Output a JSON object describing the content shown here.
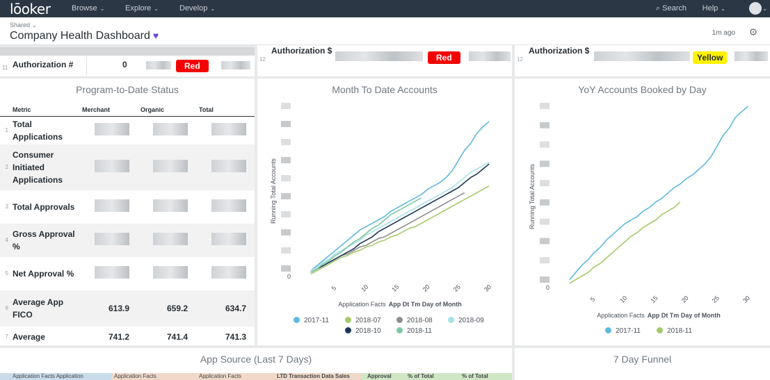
{
  "nav": {
    "logo": "lōoker",
    "browse": "Browse",
    "explore": "Explore",
    "develop": "Develop",
    "search": "Search",
    "help": "Help"
  },
  "header": {
    "shared": "Shared",
    "title": "Company Health Dashboard",
    "updated": "1m ago"
  },
  "auth_tiles": [
    {
      "rownum": "11",
      "label": "Authorization #",
      "value": "0",
      "badge": "Red"
    },
    {
      "rownum": "12",
      "label": "Authorization $",
      "badge": "Red"
    },
    {
      "rownum": "12",
      "label": "Authorization $",
      "badge": "Yellow"
    }
  ],
  "program_to_date": {
    "title": "Program-to-Date Status",
    "columns": [
      "Metric",
      "Merchant",
      "Organic",
      "Total"
    ],
    "rows": [
      {
        "num": "1",
        "metric": "Total Applications"
      },
      {
        "num": "2",
        "metric": "Consumer Initiated Applications"
      },
      {
        "num": "3",
        "metric": "Total Approvals"
      },
      {
        "num": "4",
        "metric": "Gross Approval %"
      },
      {
        "num": "5",
        "metric": "Net Approval %"
      },
      {
        "num": "6",
        "metric": "Average App FICO",
        "merchant": "613.9",
        "organic": "659.2",
        "total": "634.7"
      },
      {
        "num": "7",
        "metric": "Average",
        "merchant": "741.2",
        "organic": "741.4",
        "total": "741.3"
      }
    ]
  },
  "mtd_chart_title": "Month To Date Accounts",
  "yoy_chart_title": "YoY Accounts Booked by Day",
  "app_source_title": "App Source (Last 7 Days)",
  "funnel_title": "7 Day Funnel",
  "bottom_headers": [
    "Application Facts Application",
    "Application Facts",
    "Application Facts",
    "LTD Transaction Data Sales",
    "Approval",
    "% of Total",
    "% of Total"
  ],
  "chart_data": [
    {
      "type": "line",
      "title": "Month To Date Accounts",
      "xlabel_prefix": "Application Facts",
      "xlabel_bold": "App Dt Tm Day of Month",
      "ylabel": "Running Total Accounts",
      "x_ticks": [
        5,
        10,
        15,
        20,
        25,
        30
      ],
      "y_tick_zero": "0",
      "xlim": [
        0,
        31
      ],
      "ylim": [
        0,
        100
      ],
      "series": [
        {
          "name": "2017-11",
          "color": "#5fb9dc",
          "x": [
            1,
            2,
            3,
            4,
            5,
            6,
            7,
            8,
            9,
            10,
            11,
            12,
            13,
            14,
            15,
            16,
            17,
            18,
            19,
            20,
            21,
            22,
            23,
            24,
            25,
            26,
            27,
            28,
            29,
            30
          ],
          "values": [
            3,
            6,
            9,
            12,
            15,
            18,
            21,
            24,
            27,
            29,
            31,
            33,
            35,
            38,
            40,
            42,
            44,
            46,
            48,
            51,
            53,
            55,
            58,
            62,
            68,
            74,
            78,
            84,
            88,
            91
          ]
        },
        {
          "name": "2018-07",
          "color": "#a5c96a",
          "x": [
            1,
            2,
            3,
            4,
            5,
            6,
            7,
            8,
            9,
            10,
            11,
            12,
            13,
            14,
            15,
            16,
            17,
            18,
            19,
            20,
            21,
            22,
            23,
            24,
            25,
            26,
            27,
            28,
            29,
            30
          ],
          "values": [
            1,
            3,
            5,
            7,
            9,
            11,
            12,
            14,
            15,
            17,
            18,
            20,
            21,
            23,
            24,
            26,
            28,
            29,
            31,
            33,
            35,
            37,
            39,
            41,
            43,
            45,
            47,
            49,
            51,
            53
          ]
        },
        {
          "name": "2018-08",
          "color": "#8e8e8e",
          "x": [
            1,
            2,
            3,
            4,
            5,
            6,
            7,
            8,
            9,
            10,
            11,
            12,
            13,
            14,
            15,
            16,
            17,
            18,
            19,
            20,
            21,
            22,
            23,
            24,
            25,
            26
          ],
          "values": [
            2,
            4,
            6,
            8,
            10,
            12,
            13,
            15,
            17,
            18,
            20,
            22,
            23,
            25,
            27,
            29,
            31,
            33,
            35,
            37,
            39,
            41,
            43,
            45,
            47,
            49
          ]
        },
        {
          "name": "2018-09",
          "color": "#a8e1e8",
          "x": [
            1,
            2,
            3,
            4,
            5,
            6,
            7,
            8,
            9,
            10,
            11,
            12,
            13,
            14,
            15,
            16,
            17,
            18,
            19,
            20,
            21,
            22,
            23,
            24,
            25,
            26,
            27,
            28,
            29,
            30
          ],
          "values": [
            3,
            5,
            8,
            10,
            13,
            15,
            17,
            19,
            21,
            24,
            26,
            28,
            30,
            32,
            34,
            36,
            38,
            40,
            42,
            44,
            46,
            48,
            50,
            52,
            55,
            58,
            61,
            63,
            65,
            67
          ]
        },
        {
          "name": "2018-10",
          "color": "#1d3557",
          "x": [
            1,
            2,
            3,
            4,
            5,
            6,
            7,
            8,
            9,
            10,
            11,
            12,
            13,
            14,
            15,
            16,
            17,
            18,
            19,
            20,
            21,
            22,
            23,
            24,
            25,
            26,
            27,
            28,
            29,
            30
          ],
          "values": [
            2,
            4,
            6,
            8,
            10,
            12,
            14,
            16,
            19,
            21,
            23,
            26,
            28,
            30,
            32,
            34,
            36,
            38,
            40,
            42,
            44,
            46,
            48,
            50,
            52,
            55,
            58,
            60,
            63,
            66
          ]
        },
        {
          "name": "2018-11",
          "color": "#7fc7a4",
          "x": [
            1,
            2,
            3,
            4,
            5,
            6,
            7,
            8,
            9,
            10,
            11,
            12,
            13,
            14,
            15,
            16,
            17,
            18,
            19
          ],
          "values": [
            2,
            4,
            7,
            9,
            12,
            14,
            17,
            20,
            22,
            25,
            28,
            30,
            33,
            36,
            38,
            40,
            42,
            44,
            46
          ]
        }
      ]
    },
    {
      "type": "line",
      "title": "YoY Accounts Booked by Day",
      "xlabel_prefix": "Application Facts",
      "xlabel_bold": "App Dt Tm Day of Month",
      "ylabel": "Running Total Accounts",
      "x_ticks": [
        5,
        10,
        15,
        20,
        25,
        30
      ],
      "y_tick_zero": "0",
      "xlim": [
        0,
        31
      ],
      "ylim": [
        0,
        100
      ],
      "series": [
        {
          "name": "2017-11",
          "color": "#5fb9dc",
          "x": [
            1,
            2,
            3,
            4,
            5,
            6,
            7,
            8,
            9,
            10,
            11,
            12,
            13,
            14,
            15,
            16,
            17,
            18,
            19,
            20,
            21,
            22,
            23,
            24,
            25,
            26,
            27,
            28,
            29,
            30
          ],
          "values": [
            4,
            8,
            12,
            15,
            19,
            22,
            26,
            29,
            32,
            35,
            37,
            39,
            42,
            44,
            47,
            49,
            52,
            55,
            57,
            60,
            62,
            65,
            68,
            72,
            78,
            84,
            88,
            94,
            97,
            100
          ]
        },
        {
          "name": "2018-11",
          "color": "#a5c96a",
          "x": [
            1,
            2,
            3,
            4,
            5,
            6,
            7,
            8,
            9,
            10,
            11,
            12,
            13,
            14,
            15,
            16,
            17,
            18,
            19
          ],
          "values": [
            2,
            4,
            6,
            8,
            11,
            13,
            16,
            19,
            22,
            25,
            28,
            30,
            33,
            35,
            37,
            40,
            42,
            44,
            47
          ]
        }
      ]
    }
  ]
}
